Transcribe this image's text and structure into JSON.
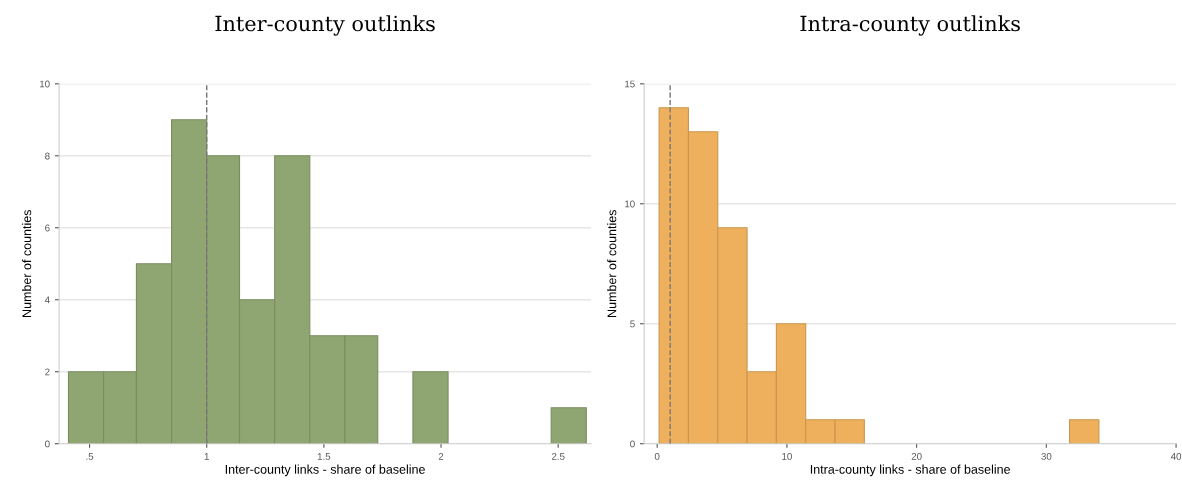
{
  "chart_data": [
    {
      "type": "histogram",
      "title": "Inter-county outlinks",
      "xlabel": "Inter-county links - share of baseline",
      "ylabel": "Number of counties",
      "bins": [
        0.41,
        0.56,
        0.7,
        0.85,
        1.0,
        1.14,
        1.29,
        1.44,
        1.59,
        1.73,
        1.88,
        2.03,
        2.47,
        2.62
      ],
      "values": [
        2,
        2,
        5,
        9,
        8,
        4,
        8,
        3,
        3,
        0,
        2,
        0,
        1
      ],
      "color": "#8fa672",
      "xlim": [
        0.37,
        2.64
      ],
      "xticks": [
        {
          "value": 0.5,
          "label": ".5"
        },
        1,
        1.5,
        2,
        2.5
      ],
      "ylim": [
        0,
        10
      ],
      "yticks": [
        0,
        2,
        4,
        6,
        8,
        10
      ],
      "grid": "y",
      "ref_lines": [
        {
          "axis": "x",
          "value": 1,
          "color": "#777777",
          "line_style": "dashed"
        }
      ]
    },
    {
      "type": "histogram",
      "title": "Intra-county outlinks",
      "xlabel": "Intra-county links - share of baseline",
      "ylabel": "Number of counties",
      "bins": [
        0.15,
        2.41,
        4.67,
        6.93,
        9.19,
        11.45,
        13.71,
        15.97,
        31.79,
        34.05
      ],
      "values": [
        14,
        13,
        9,
        3,
        5,
        1,
        1,
        0,
        1
      ],
      "color": "#eeb05c",
      "xlim": [
        -1,
        40
      ],
      "xticks": [
        0,
        10,
        20,
        30,
        40
      ],
      "ylim": [
        0,
        15
      ],
      "yticks": [
        0,
        5,
        10,
        15
      ],
      "grid": "y",
      "ref_lines": [
        {
          "axis": "x",
          "value": 1,
          "color": "#777777",
          "line_style": "dashed"
        }
      ]
    }
  ]
}
